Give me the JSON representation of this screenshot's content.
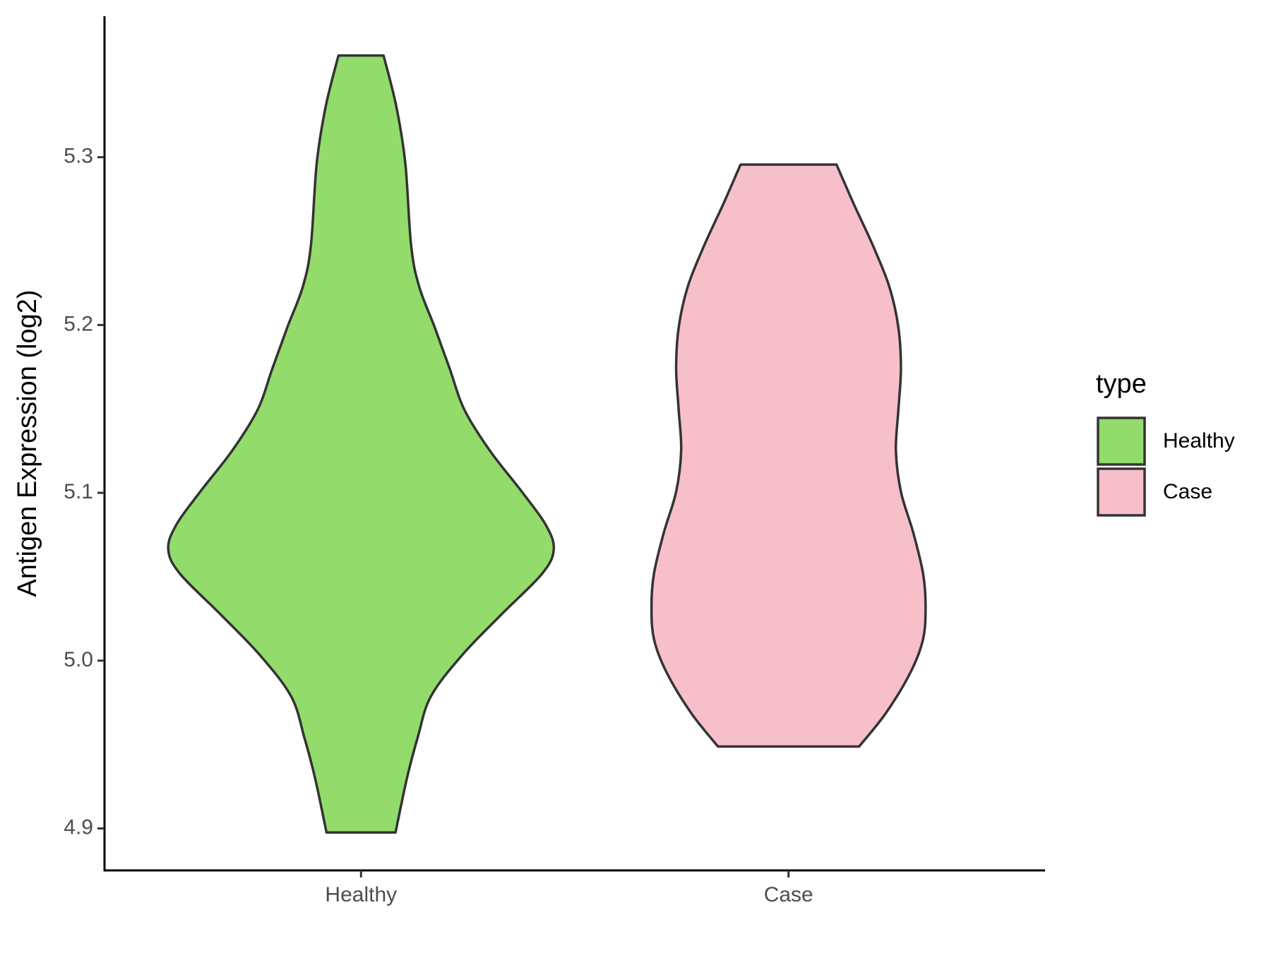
{
  "chart_data": {
    "type": "violin",
    "y_label": "Antigen Expression (log2)",
    "categories": [
      "Healthy",
      "Case"
    ],
    "legend_title": "type",
    "legend_position": "right",
    "ylim": [
      4.875,
      5.384
    ],
    "yticks": [
      4.9,
      {
        "value": 5,
        "label": "5.0"
      },
      5.1,
      5.2,
      5.3
    ],
    "series": [
      {
        "name": "Healthy",
        "color": "#93dc6b",
        "y": [
          5.3606,
          5.3303,
          5.2961,
          5.2473,
          5.2228,
          5.1984,
          5.174,
          5.1496,
          5.1252,
          5.1007,
          5.0812,
          5.0665,
          5.0519,
          5.0275,
          5.0031,
          4.9786,
          4.9542,
          4.9298,
          4.8976
        ],
        "density": [
          0.117,
          0.183,
          0.23,
          0.26,
          0.302,
          0.383,
          0.46,
          0.536,
          0.668,
          0.834,
          0.957,
          1,
          0.94,
          0.728,
          0.523,
          0.362,
          0.294,
          0.238,
          0.179
        ]
      },
      {
        "name": "Case",
        "color": "#f7bfca",
        "y": [
          5.2956,
          5.2717,
          5.2473,
          5.2228,
          5.1984,
          5.174,
          5.1496,
          5.1252,
          5.1007,
          5.0763,
          5.0519,
          5.0324,
          5.0128,
          4.9933,
          4.9689,
          4.9488
        ],
        "density": [
          0.249,
          0.34,
          0.438,
          0.523,
          0.57,
          0.583,
          0.57,
          0.557,
          0.583,
          0.647,
          0.698,
          0.711,
          0.698,
          0.634,
          0.506,
          0.366
        ]
      }
    ]
  }
}
